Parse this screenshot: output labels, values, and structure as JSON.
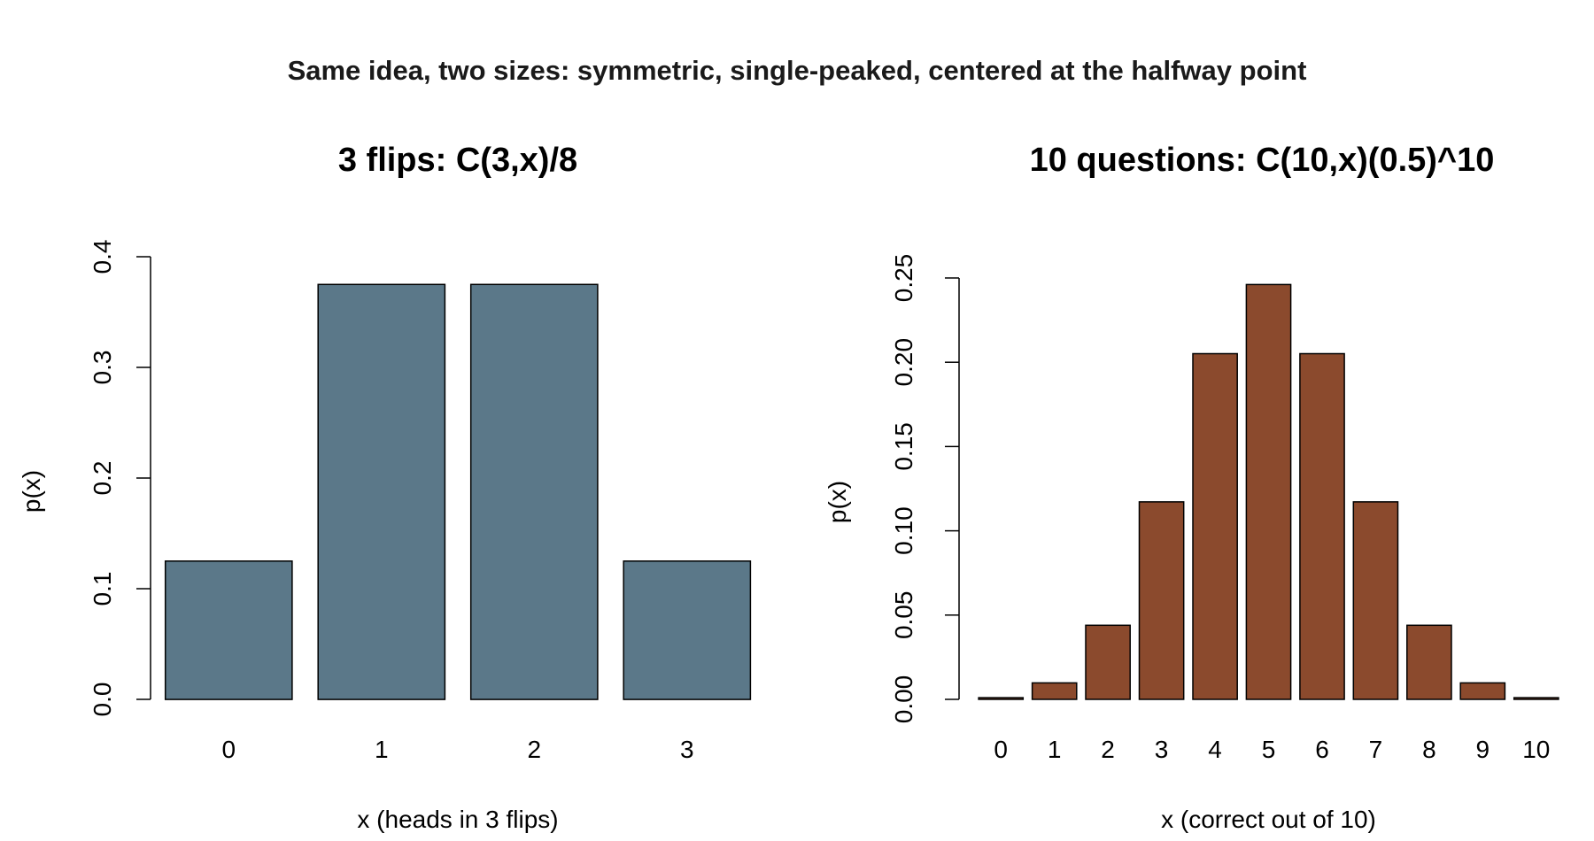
{
  "suptitle": "Same idea, two sizes: symmetric, single-peaked, centered at the halfway point",
  "chart_data": [
    {
      "type": "bar",
      "title": "3 flips: C(3,x)/8",
      "xlabel": "x (heads in 3 flips)",
      "ylabel": "p(x)",
      "categories": [
        "0",
        "1",
        "2",
        "3"
      ],
      "values": [
        0.125,
        0.375,
        0.375,
        0.125
      ],
      "ylim": [
        0,
        0.4
      ],
      "yticks": [
        "0.0",
        "0.1",
        "0.2",
        "0.3",
        "0.4"
      ],
      "color": "#5b7889",
      "grid": false,
      "legend": "none"
    },
    {
      "type": "bar",
      "title": "10 questions: C(10,x)(0.5)^10",
      "xlabel": "x (correct out of 10)",
      "ylabel": "p(x)",
      "categories": [
        "0",
        "1",
        "2",
        "3",
        "4",
        "5",
        "6",
        "7",
        "8",
        "9",
        "10"
      ],
      "values": [
        0.000977,
        0.009766,
        0.043945,
        0.117188,
        0.205078,
        0.246094,
        0.205078,
        0.117188,
        0.043945,
        0.009766,
        0.000977
      ],
      "ylim": [
        0,
        0.25
      ],
      "yticks": [
        "0.00",
        "0.05",
        "0.10",
        "0.15",
        "0.20",
        "0.25"
      ],
      "color": "#8b4a2d",
      "grid": false,
      "legend": "none"
    }
  ]
}
